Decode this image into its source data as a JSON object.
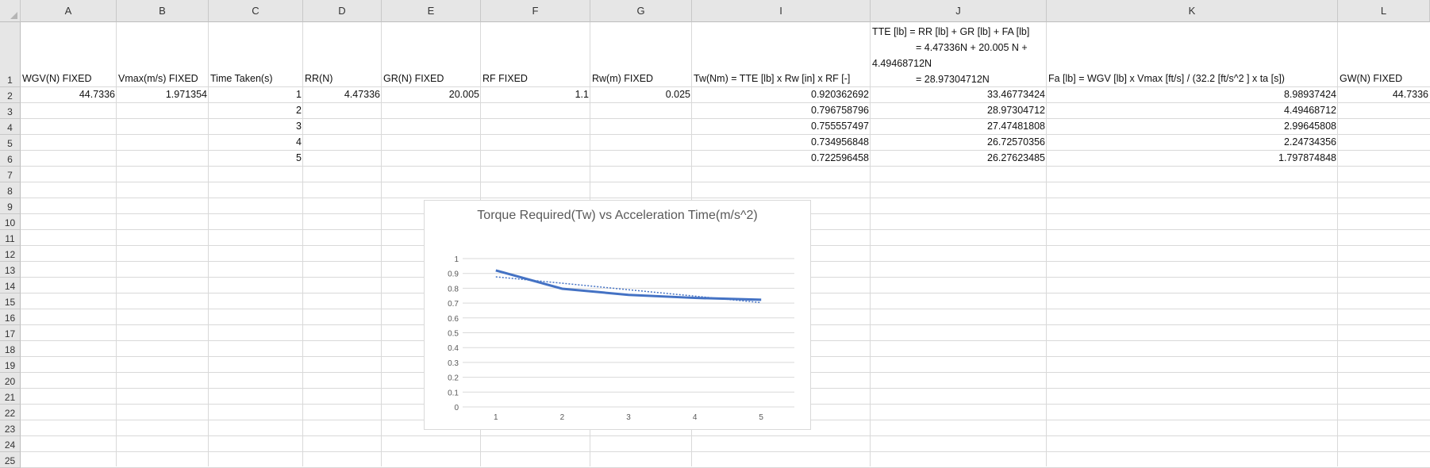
{
  "columns": [
    "A",
    "B",
    "C",
    "D",
    "E",
    "F",
    "G",
    "I",
    "J",
    "K",
    "L"
  ],
  "rows": [
    "1",
    "2",
    "3",
    "4",
    "5",
    "6",
    "7",
    "8",
    "9",
    "10",
    "11",
    "12",
    "13",
    "14",
    "15",
    "16",
    "17",
    "18",
    "19",
    "20",
    "21",
    "22",
    "23",
    "24",
    "25"
  ],
  "headers": {
    "A": "WGV(N) FIXED",
    "B": "Vmax(m/s) FIXED",
    "C": "Time Taken(s)",
    "D": "RR(N)",
    "E": "GR(N) FIXED",
    "F": "RF FIXED",
    "G": "Rw(m) FIXED",
    "I": "Tw(Nm) = TTE [lb] x Rw [in] x RF [-]",
    "J_lines": [
      "TTE [lb] = RR [lb] + GR [lb] + FA [lb]",
      "= 4.47336N + 20.005 N +",
      "4.49468712N",
      "= 28.97304712N"
    ],
    "K": "Fa [lb] = WGV [lb] x Vmax [ft/s] / (32.2 [ft/s^2 ] x ta [s])",
    "L": "GW(N) FIXED"
  },
  "row2": {
    "A": "44.7336",
    "B": "1.971354",
    "D": "4.47336",
    "E": "20.005",
    "F": "1.1",
    "G": "0.025",
    "L": "44.7336"
  },
  "time_taken": [
    "1",
    "2",
    "3",
    "4",
    "5"
  ],
  "tw_values": [
    "0.920362692",
    "0.796758796",
    "0.755557497",
    "0.734956848",
    "0.722596458"
  ],
  "tte_values": [
    "33.46773424",
    "28.97304712",
    "27.47481808",
    "26.72570356",
    "26.27623485"
  ],
  "fa_values": [
    "8.98937424",
    "4.49468712",
    "2.99645808",
    "2.24734356",
    "1.797874848"
  ],
  "chart_data": {
    "type": "line",
    "title": "Torque Required(Tw) vs Acceleration Time(m/s^2)",
    "categories": [
      "1",
      "2",
      "3",
      "4",
      "5"
    ],
    "series": [
      {
        "values": [
          0.920362692,
          0.796758796,
          0.755557497,
          0.734956848,
          0.722596458
        ],
        "color": "#4472c4",
        "style": "solid"
      },
      {
        "values": [
          0.877,
          0.834,
          0.79,
          0.747,
          0.703
        ],
        "color": "#4472c4",
        "style": "dotted trendline"
      }
    ],
    "ylim": [
      0,
      1
    ],
    "yticks": [
      "0",
      "0.1",
      "0.2",
      "0.3",
      "0.4",
      "0.5",
      "0.6",
      "0.7",
      "0.8",
      "0.9",
      "1"
    ],
    "grid": true
  }
}
